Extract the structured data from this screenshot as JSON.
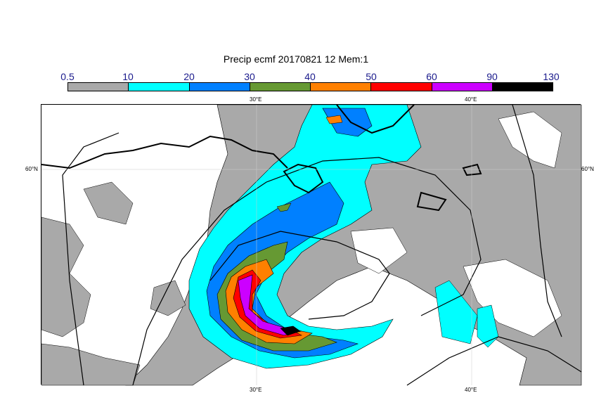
{
  "title": "Precip ecmf 20170821 12 Mem:1",
  "colorbar": {
    "levels": [
      "0.5",
      "10",
      "20",
      "30",
      "40",
      "50",
      "60",
      "90",
      "130"
    ],
    "colors": [
      "#a9a9a9",
      "#00ffff",
      "#0080ff",
      "#669933",
      "#ff8000",
      "#ff0000",
      "#cc00ff",
      "#000000"
    ]
  },
  "map": {
    "lon_labels": {
      "top": [
        "30°E",
        "40°E"
      ],
      "bottom": [
        "30°E",
        "40°E"
      ]
    },
    "lat_labels": {
      "left": "60°N",
      "right": "60°N"
    }
  }
}
